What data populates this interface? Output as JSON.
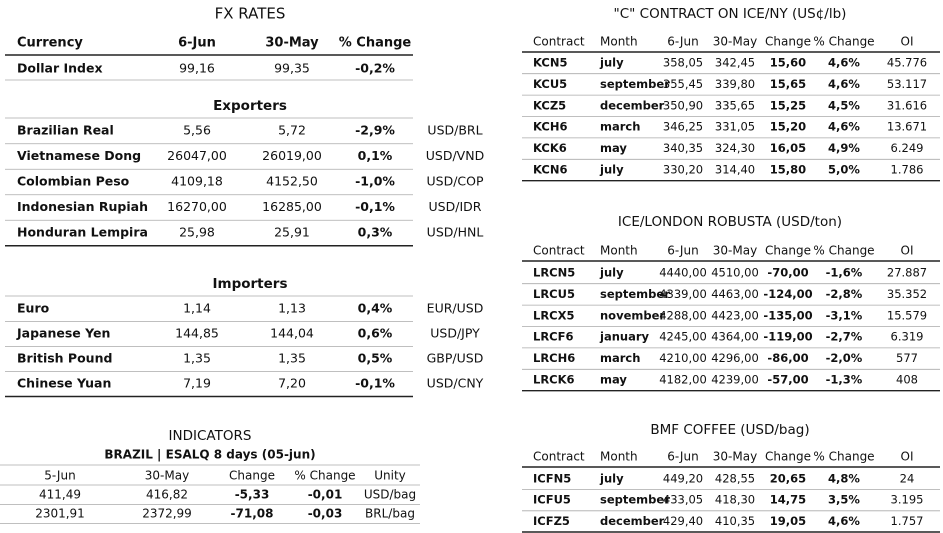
{
  "fx_rates": {
    "title": "FX RATES",
    "header": [
      "Currency",
      "6-Jun",
      "30-May",
      "% Change"
    ],
    "dollar_index": [
      "Dollar Index",
      "99,16",
      "99,35",
      "-0,2%"
    ],
    "exporters": {
      "title": "Exporters",
      "rows": [
        [
          "Brazilian Real",
          "5,56",
          "5,72",
          "-2,9%",
          "USD/BRL"
        ],
        [
          "Vietnamese Dong",
          "26047,00",
          "26019,00",
          "0,1%",
          "USD/VND"
        ],
        [
          "Colombian Peso",
          "4109,18",
          "4152,50",
          "-1,0%",
          "USD/COP"
        ],
        [
          "Indonesian Rupiah",
          "16270,00",
          "16285,00",
          "-0,1%",
          "USD/IDR"
        ],
        [
          "Honduran Lempira",
          "25,98",
          "25,91",
          "0,3%",
          "USD/HNL"
        ]
      ]
    },
    "importers": {
      "title": "Importers",
      "rows": [
        [
          "Euro",
          "1,14",
          "1,13",
          "0,4%",
          "EUR/USD"
        ],
        [
          "Japanese Yen",
          "144,85",
          "144,04",
          "0,6%",
          "USD/JPY"
        ],
        [
          "British Pound",
          "1,35",
          "1,35",
          "0,5%",
          "GBP/USD"
        ],
        [
          "Chinese Yuan",
          "7,19",
          "7,20",
          "-0,1%",
          "USD/CNY"
        ]
      ]
    }
  },
  "indicators": {
    "title": "INDICATORS",
    "subtitle": "BRAZIL | ESALQ 8 days (05-jun)",
    "header": [
      "5-Jun",
      "30-May",
      "Change",
      "% Change",
      "Unity"
    ],
    "rows": [
      [
        "411,49",
        "416,82",
        "-5,33",
        "-0,01",
        "USD/bag"
      ],
      [
        "2301,91",
        "2372,99",
        "-71,08",
        "-0,03",
        "BRL/bag"
      ]
    ]
  },
  "ice_ny": {
    "title": "\"C\" CONTRACT ON ICE/NY (US¢/lb)",
    "header": [
      "Contract",
      "Month",
      "6-Jun",
      "30-May",
      "Change",
      "% Change",
      "OI"
    ],
    "rows": [
      [
        "KCN5",
        "july",
        "358,05",
        "342,45",
        "15,60",
        "4,6%",
        "45.776"
      ],
      [
        "KCU5",
        "september",
        "355,45",
        "339,80",
        "15,65",
        "4,6%",
        "53.117"
      ],
      [
        "KCZ5",
        "december",
        "350,90",
        "335,65",
        "15,25",
        "4,5%",
        "31.616"
      ],
      [
        "KCH6",
        "march",
        "346,25",
        "331,05",
        "15,20",
        "4,6%",
        "13.671"
      ],
      [
        "KCK6",
        "may",
        "340,35",
        "324,30",
        "16,05",
        "4,9%",
        "6.249"
      ],
      [
        "KCN6",
        "july",
        "330,20",
        "314,40",
        "15,80",
        "5,0%",
        "1.786"
      ]
    ]
  },
  "ice_london": {
    "title": "ICE/LONDON ROBUSTA (USD/ton)",
    "header": [
      "Contract",
      "Month",
      "6-Jun",
      "30-May",
      "Change",
      "% Change",
      "OI"
    ],
    "rows": [
      [
        "LRCN5",
        "july",
        "4440,00",
        "4510,00",
        "-70,00",
        "-1,6%",
        "27.887"
      ],
      [
        "LRCU5",
        "september",
        "4339,00",
        "4463,00",
        "-124,00",
        "-2,8%",
        "35.352"
      ],
      [
        "LRCX5",
        "november",
        "4288,00",
        "4423,00",
        "-135,00",
        "-3,1%",
        "15.579"
      ],
      [
        "LRCF6",
        "january",
        "4245,00",
        "4364,00",
        "-119,00",
        "-2,7%",
        "6.319"
      ],
      [
        "LRCH6",
        "march",
        "4210,00",
        "4296,00",
        "-86,00",
        "-2,0%",
        "577"
      ],
      [
        "LRCK6",
        "may",
        "4182,00",
        "4239,00",
        "-57,00",
        "-1,3%",
        "408"
      ]
    ]
  },
  "bmf": {
    "title": "BMF COFFEE (USD/bag)",
    "header": [
      "Contract",
      "Month",
      "6-Jun",
      "30-May",
      "Change",
      "% Change",
      "OI"
    ],
    "rows": [
      [
        "ICFN5",
        "july",
        "449,20",
        "428,55",
        "20,65",
        "4,8%",
        "24"
      ],
      [
        "ICFU5",
        "september",
        "433,05",
        "418,30",
        "14,75",
        "3,5%",
        "3.195"
      ],
      [
        "ICFZ5",
        "december",
        "429,40",
        "410,35",
        "19,05",
        "4,6%",
        "1.757"
      ]
    ]
  }
}
